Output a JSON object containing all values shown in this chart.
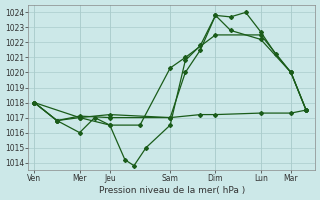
{
  "bg_color": "#cce8e8",
  "grid_color": "#aacccc",
  "lc": "#1a5c1a",
  "xlabel": "Pression niveau de la mer( hPa )",
  "ylim": [
    1013.5,
    1024.5
  ],
  "yticks": [
    1014,
    1015,
    1016,
    1017,
    1018,
    1019,
    1020,
    1021,
    1022,
    1023,
    1024
  ],
  "xtick_labels": [
    "Ven",
    "Mer",
    "Jeu",
    "Sam",
    "Dim",
    "Lun",
    "Mar"
  ],
  "xtick_pos": [
    0,
    1.5,
    2.5,
    4.5,
    6,
    7.5,
    8.5
  ],
  "xlim": [
    -0.2,
    9.3
  ],
  "line1_x": [
    0,
    0.75,
    1.5,
    2.0,
    2.5,
    3.0,
    3.3,
    3.7,
    4.5,
    5.0,
    5.5,
    6.0,
    6.5,
    7.0,
    7.5,
    8.0,
    8.5,
    9.0
  ],
  "line1_y": [
    1018.0,
    1016.8,
    1016.0,
    1017.0,
    1016.5,
    1014.2,
    1013.8,
    1015.0,
    1016.5,
    1020.8,
    1021.8,
    1023.8,
    1023.7,
    1024.0,
    1022.7,
    1021.2,
    1020.0,
    1017.5
  ],
  "line2_x": [
    0,
    0.75,
    1.5,
    2.5,
    4.5,
    5.0,
    5.5,
    6.0,
    6.5,
    7.5,
    8.5,
    9.0
  ],
  "line2_y": [
    1018.0,
    1016.8,
    1017.0,
    1017.2,
    1017.0,
    1020.0,
    1021.5,
    1023.8,
    1022.8,
    1022.2,
    1020.0,
    1017.5
  ],
  "line3_x": [
    0,
    0.75,
    1.5,
    2.5,
    4.5,
    5.5,
    6.0,
    7.5,
    8.5,
    9.0
  ],
  "line3_y": [
    1018.0,
    1016.8,
    1017.1,
    1017.0,
    1017.0,
    1017.2,
    1017.2,
    1017.3,
    1017.3,
    1017.5
  ],
  "line4_x": [
    0,
    1.5,
    2.5,
    3.5,
    4.5,
    5.0,
    6.0,
    7.5,
    8.5,
    9.0
  ],
  "line4_y": [
    1018.0,
    1017.0,
    1016.5,
    1016.5,
    1020.3,
    1021.0,
    1022.5,
    1022.5,
    1020.0,
    1017.5
  ]
}
